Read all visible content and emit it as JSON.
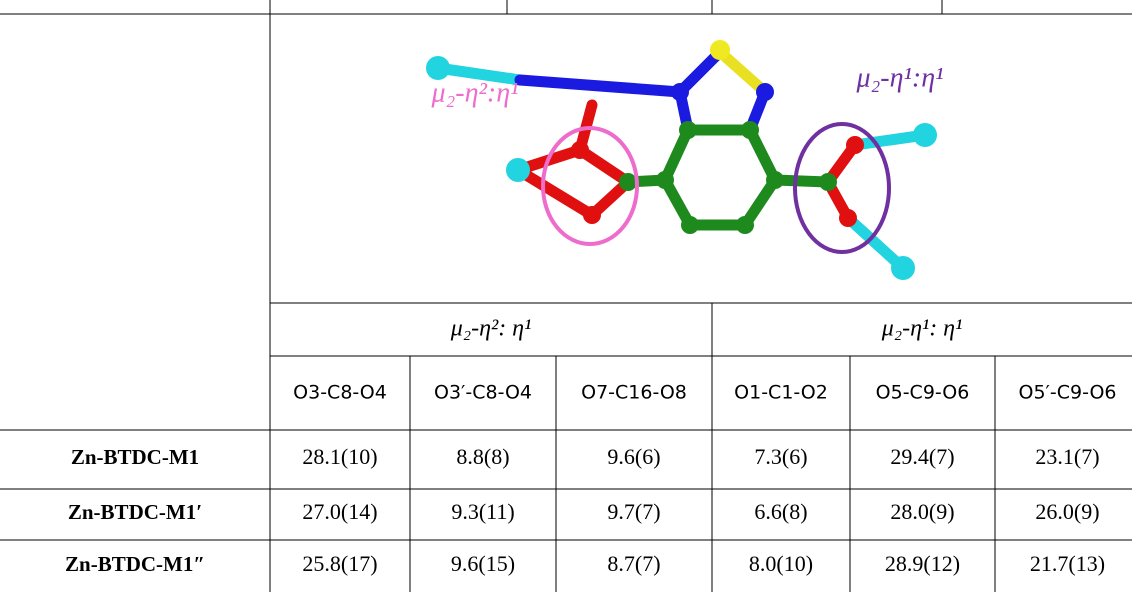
{
  "molecule": {
    "labels": [
      "μ₂-η²:η¹",
      "μ₂-η¹:η¹"
    ]
  },
  "table": {
    "group_headers": [
      "μ₂-η²: η¹",
      "μ₂-η¹: η¹"
    ],
    "column_headers": [
      "O3-C8-O4",
      "O3′-C8-O4",
      "O7-C16-O8",
      "O1-C1-O2",
      "O5-C9-O6",
      "O5′-C9-O6"
    ],
    "rows": [
      {
        "name": "Zn-BTDC-M1",
        "values": [
          "28.1(10)",
          "8.8(8)",
          "9.6(6)",
          "7.3(6)",
          "29.4(7)",
          "23.1(7)"
        ]
      },
      {
        "name": "Zn-BTDC-M1′",
        "values": [
          "27.0(14)",
          "9.3(11)",
          "9.7(7)",
          "6.6(8)",
          "28.0(9)",
          "26.0(9)"
        ]
      },
      {
        "name": "Zn-BTDC-M1″",
        "values": [
          "25.8(17)",
          "9.6(15)",
          "8.7(7)",
          "8.0(10)",
          "28.9(12)",
          "21.7(13)"
        ]
      }
    ]
  }
}
